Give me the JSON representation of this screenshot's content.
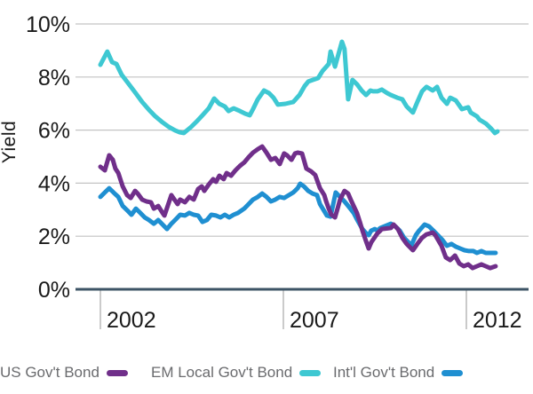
{
  "legend": [
    {
      "label": "US Gov't Bond",
      "color": "#702f8a"
    },
    {
      "label": "EM Local Gov't Bond",
      "color": "#3ec8d2"
    },
    {
      "label": "Int'l Gov't Bond",
      "color": "#1f8fd1"
    }
  ],
  "chart_data": {
    "type": "line",
    "title": "",
    "xlabel": "",
    "ylabel": "Yield",
    "grid": true,
    "legend_position": "bottom",
    "x_range": [
      2001.32,
      2013.7
    ],
    "y_range": [
      0,
      10
    ],
    "x_ticks": [
      2002,
      2007,
      2012
    ],
    "x_tick_labels": [
      "2002",
      "2007",
      "2012"
    ],
    "y_ticks": [
      0,
      2,
      4,
      6,
      8,
      10
    ],
    "y_tick_labels": [
      "0%",
      "2%",
      "4%",
      "6%",
      "8%",
      "10%"
    ],
    "grid_color": "#c3c3c3",
    "axis_color": "#3d5466",
    "tick_mark_color": "#b9b9b9",
    "tick_label_color": "#1a1a1a",
    "legend_text_color": "#6a6b6e",
    "draw_order": [
      1,
      2,
      0
    ],
    "series": [
      {
        "name": "US Gov't Bond",
        "color": "#702f8a",
        "points": [
          [
            2002.0,
            4.62
          ],
          [
            2002.12,
            4.48
          ],
          [
            2002.24,
            5.05
          ],
          [
            2002.34,
            4.88
          ],
          [
            2002.41,
            4.55
          ],
          [
            2002.49,
            4.38
          ],
          [
            2002.61,
            3.88
          ],
          [
            2002.73,
            3.55
          ],
          [
            2002.83,
            3.44
          ],
          [
            2002.95,
            3.71
          ],
          [
            2003.02,
            3.61
          ],
          [
            2003.14,
            3.38
          ],
          [
            2003.26,
            3.31
          ],
          [
            2003.38,
            3.28
          ],
          [
            2003.46,
            3.04
          ],
          [
            2003.58,
            3.14
          ],
          [
            2003.7,
            2.88
          ],
          [
            2003.75,
            2.78
          ],
          [
            2003.94,
            3.55
          ],
          [
            2004.11,
            3.21
          ],
          [
            2004.18,
            3.38
          ],
          [
            2004.31,
            3.28
          ],
          [
            2004.43,
            3.48
          ],
          [
            2004.55,
            3.38
          ],
          [
            2004.67,
            3.78
          ],
          [
            2004.77,
            3.88
          ],
          [
            2004.84,
            3.71
          ],
          [
            2004.96,
            3.95
          ],
          [
            2005.08,
            4.15
          ],
          [
            2005.16,
            4.05
          ],
          [
            2005.25,
            4.28
          ],
          [
            2005.37,
            4.15
          ],
          [
            2005.45,
            4.38
          ],
          [
            2005.57,
            4.28
          ],
          [
            2005.69,
            4.48
          ],
          [
            2005.81,
            4.65
          ],
          [
            2005.93,
            4.78
          ],
          [
            2006.05,
            4.98
          ],
          [
            2006.17,
            5.15
          ],
          [
            2006.3,
            5.28
          ],
          [
            2006.42,
            5.38
          ],
          [
            2006.54,
            5.15
          ],
          [
            2006.66,
            4.88
          ],
          [
            2006.78,
            4.95
          ],
          [
            2006.9,
            4.72
          ],
          [
            2007.02,
            5.12
          ],
          [
            2007.1,
            5.05
          ],
          [
            2007.22,
            4.88
          ],
          [
            2007.32,
            5.12
          ],
          [
            2007.39,
            5.15
          ],
          [
            2007.51,
            5.12
          ],
          [
            2007.63,
            4.55
          ],
          [
            2007.75,
            4.45
          ],
          [
            2007.87,
            4.31
          ],
          [
            2008.0,
            3.81
          ],
          [
            2008.12,
            3.55
          ],
          [
            2008.17,
            3.31
          ],
          [
            2008.24,
            3.04
          ],
          [
            2008.31,
            2.81
          ],
          [
            2008.41,
            2.71
          ],
          [
            2008.48,
            3.04
          ],
          [
            2008.55,
            3.38
          ],
          [
            2008.67,
            3.71
          ],
          [
            2008.77,
            3.61
          ],
          [
            2008.84,
            3.38
          ],
          [
            2008.92,
            3.14
          ],
          [
            2009.01,
            2.88
          ],
          [
            2009.09,
            2.54
          ],
          [
            2009.16,
            2.21
          ],
          [
            2009.26,
            1.81
          ],
          [
            2009.33,
            1.54
          ],
          [
            2009.4,
            1.77
          ],
          [
            2009.5,
            1.97
          ],
          [
            2009.57,
            2.11
          ],
          [
            2009.65,
            2.21
          ],
          [
            2009.69,
            2.27
          ],
          [
            2009.94,
            2.31
          ],
          [
            2010.01,
            2.44
          ],
          [
            2010.13,
            2.27
          ],
          [
            2010.25,
            1.94
          ],
          [
            2010.37,
            1.71
          ],
          [
            2010.54,
            1.47
          ],
          [
            2010.66,
            1.71
          ],
          [
            2010.79,
            1.94
          ],
          [
            2010.91,
            2.07
          ],
          [
            2011.08,
            2.14
          ],
          [
            2011.15,
            2.04
          ],
          [
            2011.32,
            1.64
          ],
          [
            2011.44,
            1.2
          ],
          [
            2011.56,
            1.1
          ],
          [
            2011.69,
            1.27
          ],
          [
            2011.81,
            0.97
          ],
          [
            2011.93,
            0.87
          ],
          [
            2012.05,
            0.94
          ],
          [
            2012.17,
            0.8
          ],
          [
            2012.29,
            0.87
          ],
          [
            2012.41,
            0.94
          ],
          [
            2012.53,
            0.87
          ],
          [
            2012.65,
            0.8
          ],
          [
            2012.8,
            0.87
          ]
        ]
      },
      {
        "name": "EM Local Gov't Bond",
        "color": "#3ec8d2",
        "points": [
          [
            2002.0,
            8.46
          ],
          [
            2002.19,
            8.96
          ],
          [
            2002.32,
            8.56
          ],
          [
            2002.44,
            8.49
          ],
          [
            2002.58,
            8.09
          ],
          [
            2002.78,
            7.73
          ],
          [
            2002.95,
            7.42
          ],
          [
            2003.14,
            7.06
          ],
          [
            2003.33,
            6.76
          ],
          [
            2003.5,
            6.52
          ],
          [
            2003.7,
            6.29
          ],
          [
            2003.87,
            6.12
          ],
          [
            2004.04,
            5.99
          ],
          [
            2004.16,
            5.92
          ],
          [
            2004.28,
            5.89
          ],
          [
            2004.48,
            6.12
          ],
          [
            2004.65,
            6.35
          ],
          [
            2004.79,
            6.56
          ],
          [
            2004.96,
            6.82
          ],
          [
            2005.11,
            7.19
          ],
          [
            2005.25,
            6.99
          ],
          [
            2005.4,
            6.89
          ],
          [
            2005.5,
            6.72
          ],
          [
            2005.64,
            6.82
          ],
          [
            2005.81,
            6.72
          ],
          [
            2005.96,
            6.62
          ],
          [
            2006.08,
            6.56
          ],
          [
            2006.17,
            6.79
          ],
          [
            2006.3,
            7.16
          ],
          [
            2006.47,
            7.49
          ],
          [
            2006.61,
            7.39
          ],
          [
            2006.73,
            7.22
          ],
          [
            2006.85,
            6.96
          ],
          [
            2007.05,
            6.99
          ],
          [
            2007.27,
            7.06
          ],
          [
            2007.44,
            7.32
          ],
          [
            2007.58,
            7.66
          ],
          [
            2007.68,
            7.83
          ],
          [
            2007.8,
            7.89
          ],
          [
            2007.95,
            7.96
          ],
          [
            2008.07,
            8.23
          ],
          [
            2008.24,
            8.49
          ],
          [
            2008.29,
            8.96
          ],
          [
            2008.41,
            8.39
          ],
          [
            2008.6,
            9.33
          ],
          [
            2008.67,
            9.06
          ],
          [
            2008.77,
            7.16
          ],
          [
            2008.89,
            7.89
          ],
          [
            2009.01,
            7.73
          ],
          [
            2009.14,
            7.49
          ],
          [
            2009.26,
            7.32
          ],
          [
            2009.38,
            7.49
          ],
          [
            2009.45,
            7.46
          ],
          [
            2009.57,
            7.46
          ],
          [
            2009.69,
            7.53
          ],
          [
            2009.84,
            7.39
          ],
          [
            2009.94,
            7.32
          ],
          [
            2010.11,
            7.22
          ],
          [
            2010.25,
            7.16
          ],
          [
            2010.37,
            6.89
          ],
          [
            2010.54,
            6.66
          ],
          [
            2010.66,
            7.06
          ],
          [
            2010.79,
            7.46
          ],
          [
            2010.91,
            7.63
          ],
          [
            2011.08,
            7.49
          ],
          [
            2011.2,
            7.63
          ],
          [
            2011.32,
            7.22
          ],
          [
            2011.47,
            6.99
          ],
          [
            2011.56,
            7.22
          ],
          [
            2011.71,
            7.12
          ],
          [
            2011.88,
            6.79
          ],
          [
            2012.05,
            6.86
          ],
          [
            2012.12,
            6.66
          ],
          [
            2012.29,
            6.52
          ],
          [
            2012.36,
            6.39
          ],
          [
            2012.53,
            6.25
          ],
          [
            2012.68,
            6.05
          ],
          [
            2012.78,
            5.89
          ],
          [
            2012.85,
            5.95
          ]
        ]
      },
      {
        "name": "Int'l Gov't Bond",
        "color": "#1f8fd1",
        "points": [
          [
            2002.0,
            3.48
          ],
          [
            2002.12,
            3.65
          ],
          [
            2002.24,
            3.81
          ],
          [
            2002.36,
            3.65
          ],
          [
            2002.49,
            3.48
          ],
          [
            2002.61,
            3.14
          ],
          [
            2002.73,
            2.98
          ],
          [
            2002.85,
            2.81
          ],
          [
            2002.97,
            3.04
          ],
          [
            2003.09,
            2.88
          ],
          [
            2003.21,
            2.71
          ],
          [
            2003.33,
            2.61
          ],
          [
            2003.46,
            2.47
          ],
          [
            2003.58,
            2.61
          ],
          [
            2003.7,
            2.44
          ],
          [
            2003.82,
            2.27
          ],
          [
            2003.94,
            2.47
          ],
          [
            2004.06,
            2.64
          ],
          [
            2004.18,
            2.81
          ],
          [
            2004.31,
            2.78
          ],
          [
            2004.43,
            2.88
          ],
          [
            2004.55,
            2.81
          ],
          [
            2004.67,
            2.78
          ],
          [
            2004.79,
            2.54
          ],
          [
            2004.91,
            2.61
          ],
          [
            2005.03,
            2.81
          ],
          [
            2005.16,
            2.78
          ],
          [
            2005.28,
            2.71
          ],
          [
            2005.4,
            2.81
          ],
          [
            2005.52,
            2.71
          ],
          [
            2005.64,
            2.81
          ],
          [
            2005.76,
            2.88
          ],
          [
            2005.93,
            3.04
          ],
          [
            2006.05,
            3.21
          ],
          [
            2006.17,
            3.38
          ],
          [
            2006.3,
            3.48
          ],
          [
            2006.42,
            3.61
          ],
          [
            2006.54,
            3.48
          ],
          [
            2006.66,
            3.31
          ],
          [
            2006.78,
            3.38
          ],
          [
            2006.9,
            3.48
          ],
          [
            2007.02,
            3.44
          ],
          [
            2007.15,
            3.55
          ],
          [
            2007.27,
            3.65
          ],
          [
            2007.39,
            3.81
          ],
          [
            2007.46,
            3.98
          ],
          [
            2007.56,
            3.88
          ],
          [
            2007.68,
            3.71
          ],
          [
            2007.8,
            3.61
          ],
          [
            2007.92,
            3.55
          ],
          [
            2008.0,
            3.21
          ],
          [
            2008.12,
            2.94
          ],
          [
            2008.19,
            2.78
          ],
          [
            2008.29,
            2.74
          ],
          [
            2008.43,
            3.65
          ],
          [
            2008.55,
            3.48
          ],
          [
            2008.67,
            3.31
          ],
          [
            2008.79,
            3.11
          ],
          [
            2008.92,
            2.88
          ],
          [
            2009.01,
            2.64
          ],
          [
            2009.09,
            2.44
          ],
          [
            2009.16,
            2.27
          ],
          [
            2009.26,
            2.11
          ],
          [
            2009.33,
            2.04
          ],
          [
            2009.4,
            2.21
          ],
          [
            2009.5,
            2.27
          ],
          [
            2009.57,
            2.21
          ],
          [
            2009.65,
            2.31
          ],
          [
            2009.94,
            2.47
          ],
          [
            2010.06,
            2.37
          ],
          [
            2010.18,
            2.21
          ],
          [
            2010.3,
            1.94
          ],
          [
            2010.42,
            1.77
          ],
          [
            2010.49,
            1.64
          ],
          [
            2010.62,
            2.04
          ],
          [
            2010.71,
            2.21
          ],
          [
            2010.86,
            2.44
          ],
          [
            2010.98,
            2.37
          ],
          [
            2011.1,
            2.21
          ],
          [
            2011.22,
            2.04
          ],
          [
            2011.34,
            1.87
          ],
          [
            2011.47,
            1.64
          ],
          [
            2011.59,
            1.71
          ],
          [
            2011.71,
            1.61
          ],
          [
            2011.83,
            1.54
          ],
          [
            2011.95,
            1.47
          ],
          [
            2012.07,
            1.44
          ],
          [
            2012.19,
            1.44
          ],
          [
            2012.29,
            1.37
          ],
          [
            2012.41,
            1.44
          ],
          [
            2012.53,
            1.37
          ],
          [
            2012.65,
            1.37
          ],
          [
            2012.8,
            1.37
          ]
        ]
      }
    ]
  }
}
